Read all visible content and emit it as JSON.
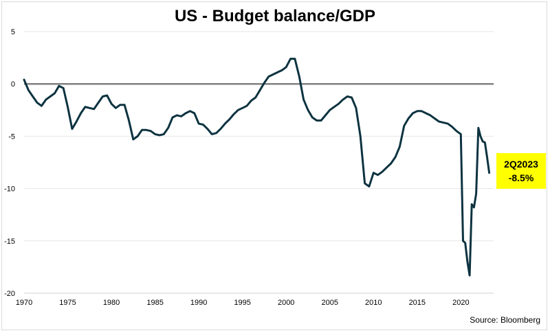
{
  "source_label": "Source: Bloomberg",
  "callout": {
    "line1": "2Q2023",
    "line2": "-8.5%",
    "color": "#ffff00"
  },
  "colors": {
    "line": "#0d3340",
    "zero_line": "#808080",
    "grid": "#e6e6e6"
  },
  "chart_data": {
    "type": "line",
    "title": "US - Budget balance/GDP",
    "xlabel": "",
    "ylabel": "",
    "xlim": [
      1970,
      2023.75
    ],
    "ylim": [
      -20,
      5
    ],
    "yticks": [
      5,
      0,
      -5,
      -10,
      -15,
      -20
    ],
    "xticks": [
      1970,
      1975,
      1980,
      1985,
      1990,
      1995,
      2000,
      2005,
      2010,
      2015,
      2020
    ],
    "grid": "horizontal",
    "series": [
      {
        "x": [
          1970.0,
          1970.5,
          1971.0,
          1971.5,
          1972.0,
          1972.5,
          1973.0,
          1973.5,
          1974.0,
          1974.5,
          1975.0,
          1975.5,
          1976.0,
          1976.5,
          1977.0,
          1977.5,
          1978.0,
          1978.5,
          1979.0,
          1979.5,
          1980.0,
          1980.5,
          1981.0,
          1981.5,
          1982.0,
          1982.5,
          1983.0,
          1983.5,
          1984.0,
          1984.5,
          1985.0,
          1985.5,
          1986.0,
          1986.5,
          1987.0,
          1987.5,
          1988.0,
          1988.5,
          1989.0,
          1989.5,
          1990.0,
          1990.5,
          1991.0,
          1991.5,
          1992.0,
          1992.5,
          1993.0,
          1993.5,
          1994.0,
          1994.5,
          1995.0,
          1995.5,
          1996.0,
          1996.5,
          1997.0,
          1997.5,
          1998.0,
          1998.5,
          1999.0,
          1999.5,
          2000.0,
          2000.5,
          2001.0,
          2001.5,
          2002.0,
          2002.5,
          2003.0,
          2003.5,
          2004.0,
          2004.5,
          2005.0,
          2005.5,
          2006.0,
          2006.5,
          2007.0,
          2007.5,
          2008.0,
          2008.5,
          2009.0,
          2009.5,
          2010.0,
          2010.5,
          2011.0,
          2011.5,
          2012.0,
          2012.5,
          2013.0,
          2013.5,
          2014.0,
          2014.5,
          2015.0,
          2015.5,
          2016.0,
          2016.5,
          2017.0,
          2017.5,
          2018.0,
          2018.5,
          2019.0,
          2019.5,
          2020.0,
          2020.25,
          2020.5,
          2020.75,
          2021.0,
          2021.25,
          2021.5,
          2021.75,
          2022.0,
          2022.25,
          2022.5,
          2022.75,
          2023.0,
          2023.25
        ],
        "values": [
          0.4,
          -0.6,
          -1.2,
          -1.8,
          -2.1,
          -1.5,
          -1.2,
          -0.9,
          -0.2,
          -0.4,
          -2.2,
          -4.3,
          -3.6,
          -2.8,
          -2.2,
          -2.3,
          -2.4,
          -1.8,
          -1.2,
          -1.1,
          -1.9,
          -2.3,
          -2.0,
          -2.0,
          -3.5,
          -5.3,
          -5.0,
          -4.4,
          -4.4,
          -4.5,
          -4.8,
          -4.9,
          -4.8,
          -4.2,
          -3.2,
          -3.0,
          -3.1,
          -2.8,
          -2.6,
          -2.8,
          -3.8,
          -3.9,
          -4.3,
          -4.8,
          -4.7,
          -4.3,
          -3.8,
          -3.4,
          -2.9,
          -2.5,
          -2.3,
          -2.1,
          -1.6,
          -1.3,
          -0.6,
          0.1,
          0.7,
          0.9,
          1.1,
          1.3,
          1.6,
          2.4,
          2.4,
          0.7,
          -1.5,
          -2.5,
          -3.2,
          -3.5,
          -3.5,
          -3.0,
          -2.5,
          -2.2,
          -1.9,
          -1.5,
          -1.2,
          -1.3,
          -2.3,
          -5.0,
          -9.5,
          -9.8,
          -8.5,
          -8.7,
          -8.4,
          -8.0,
          -7.6,
          -7.0,
          -6.0,
          -4.0,
          -3.3,
          -2.8,
          -2.6,
          -2.6,
          -2.8,
          -3.0,
          -3.3,
          -3.6,
          -3.7,
          -3.8,
          -4.1,
          -4.5,
          -4.8,
          -15.0,
          -15.2,
          -17.0,
          -18.3,
          -11.5,
          -11.8,
          -10.5,
          -4.2,
          -5.0,
          -5.5,
          -5.6,
          -7.0,
          -8.5
        ]
      }
    ]
  }
}
